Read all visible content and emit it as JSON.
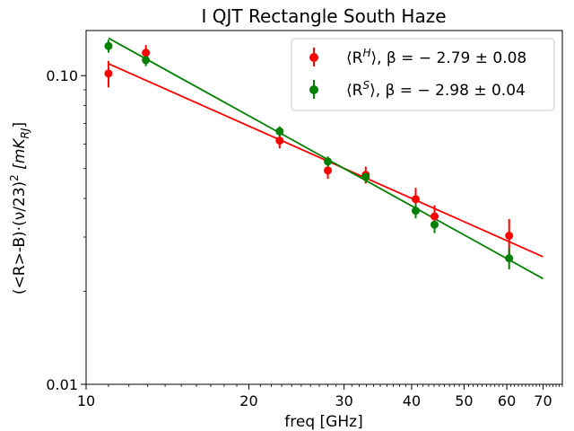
{
  "chart_data": {
    "type": "scatter",
    "title": "I QJT Rectangle South Haze",
    "xlabel": "freq [GHz]",
    "ylabel": "(<R>-B)·(ν/23)² [mK_RJ]",
    "xscale": "log",
    "yscale": "log",
    "xlim": [
      10,
      76
    ],
    "ylim": [
      0.01,
      0.14
    ],
    "xticks": [
      10,
      20,
      30,
      40,
      50,
      60,
      70
    ],
    "xtick_labels": [
      "10",
      "20",
      "30",
      "40",
      "50",
      "60",
      "70"
    ],
    "yticks": [
      0.01,
      0.1
    ],
    "ytick_labels": [
      "0.01",
      "0.10"
    ],
    "legend_position": "top-right",
    "series": [
      {
        "name": "⟨R^H⟩, β = −2.79 ± 0.08",
        "color": "#ff0000",
        "x": [
          11.0,
          12.9,
          22.8,
          28.0,
          32.9,
          40.7,
          44.1,
          60.6
        ],
        "y": [
          0.1016,
          0.1186,
          0.0616,
          0.0493,
          0.0477,
          0.0398,
          0.035,
          0.0303
        ],
        "yerr": [
          0.01,
          0.007,
          0.0035,
          0.003,
          0.003,
          0.0035,
          0.003,
          0.004
        ],
        "fit": {
          "x": [
            11.0,
            70.0
          ],
          "y": [
            0.1093,
            0.0259
          ]
        }
      },
      {
        "name": "⟨R^S⟩, β = −2.98 ± 0.04",
        "color": "#008000",
        "x": [
          11.0,
          12.9,
          22.8,
          28.0,
          32.9,
          40.7,
          44.1,
          60.6
        ],
        "y": [
          0.1247,
          0.1123,
          0.066,
          0.0527,
          0.047,
          0.0365,
          0.0329,
          0.0256
        ],
        "yerr": [
          0.006,
          0.005,
          0.0025,
          0.002,
          0.002,
          0.002,
          0.002,
          0.002
        ],
        "fit": {
          "x": [
            11.0,
            70.0
          ],
          "y": [
            0.1323,
            0.022
          ]
        }
      }
    ]
  },
  "legend": {
    "entries": [
      {
        "prefix": "⟨R",
        "sup": "H",
        "suffix": "⟩, β = − 2.79 ± 0.08"
      },
      {
        "prefix": "⟨R",
        "sup": "S",
        "suffix": "⟩, β = − 2.98 ± 0.04"
      }
    ]
  },
  "ylabel_parts": {
    "main": "(<R>-B)·(ν/23)",
    "sq": "2",
    "unit_open": " [mK",
    "unit_sub": "RJ",
    "unit_close": "]"
  }
}
